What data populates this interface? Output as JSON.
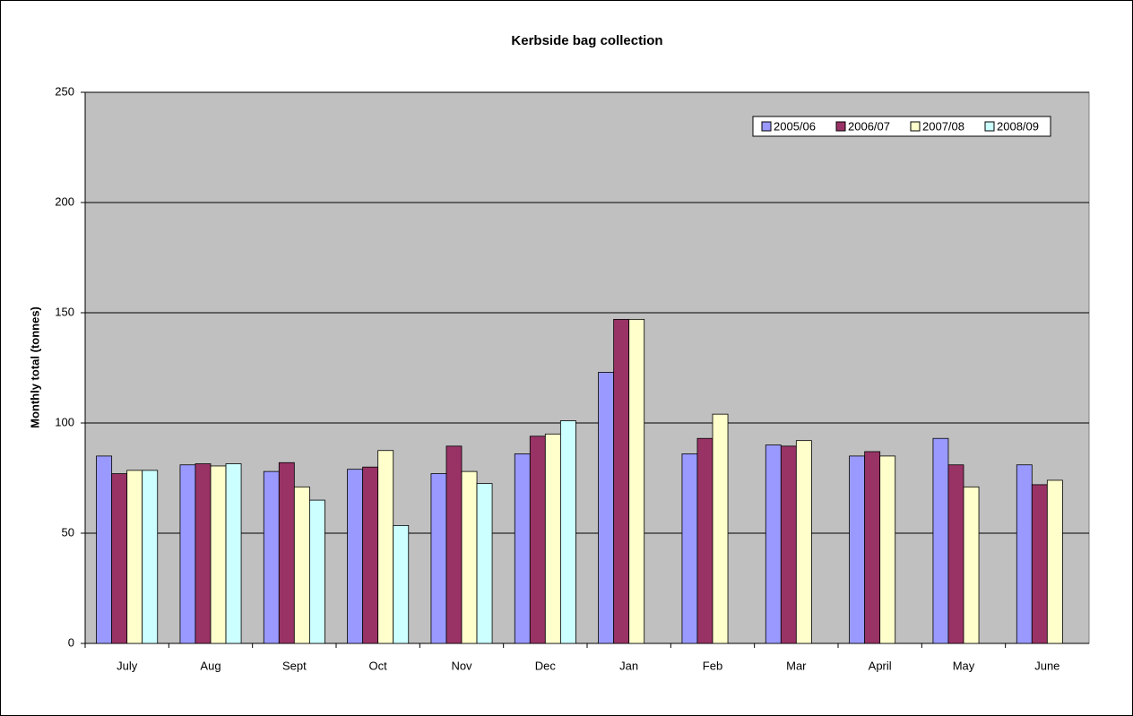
{
  "chart_data": {
    "type": "bar",
    "title": "Kerbside bag collection",
    "y_label": "Monthly total (tonnes)",
    "categories": [
      "July",
      "Aug",
      "Sept",
      "Oct",
      "Nov",
      "Dec",
      "Jan",
      "Feb",
      "Mar",
      "April",
      "May",
      "June"
    ],
    "series": [
      {
        "name": "2005/06",
        "color": "#9999ff",
        "values": [
          85,
          81,
          78,
          79,
          77,
          86,
          123,
          86,
          90,
          85,
          93,
          81
        ]
      },
      {
        "name": "2006/07",
        "color": "#993366",
        "values": [
          77,
          81.5,
          82,
          80,
          89.5,
          94,
          147,
          93,
          89.5,
          87,
          81,
          72
        ]
      },
      {
        "name": "2007/08",
        "color": "#ffffcc",
        "values": [
          78.5,
          80.5,
          71,
          87.5,
          78,
          95,
          147,
          104,
          92,
          85,
          71,
          74
        ]
      },
      {
        "name": "2008/09",
        "color": "#ccffff",
        "values": [
          78.5,
          81.5,
          65,
          53.5,
          72.5,
          101,
          null,
          null,
          null,
          null,
          null,
          null
        ]
      }
    ],
    "ylim": [
      0,
      250
    ],
    "yticks": [
      0,
      50,
      100,
      150,
      200,
      250
    ],
    "grid": true,
    "legend": "upper right",
    "plot_background": "#c0c0c0"
  }
}
